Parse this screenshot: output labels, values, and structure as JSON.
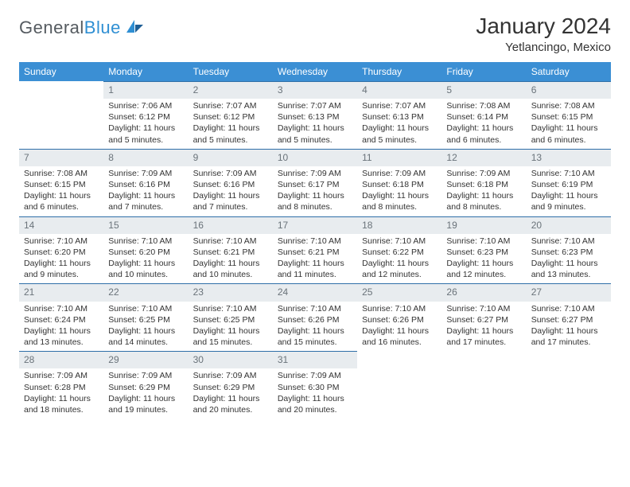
{
  "brand": {
    "part1": "General",
    "part2": "Blue"
  },
  "title": "January 2024",
  "location": "Yetlancingo, Mexico",
  "colors": {
    "header_bg": "#3b8fd4",
    "header_fg": "#ffffff",
    "daynum_bg": "#e8ecef",
    "daynum_border": "#2f6fa8",
    "daynum_fg": "#6a737a",
    "brand_gray": "#555b60",
    "brand_blue": "#2f8fd3"
  },
  "weekdays": [
    "Sunday",
    "Monday",
    "Tuesday",
    "Wednesday",
    "Thursday",
    "Friday",
    "Saturday"
  ],
  "weeks": [
    [
      {
        "n": "",
        "sr": "",
        "ss": "",
        "dl": ""
      },
      {
        "n": "1",
        "sr": "Sunrise: 7:06 AM",
        "ss": "Sunset: 6:12 PM",
        "dl": "Daylight: 11 hours and 5 minutes."
      },
      {
        "n": "2",
        "sr": "Sunrise: 7:07 AM",
        "ss": "Sunset: 6:12 PM",
        "dl": "Daylight: 11 hours and 5 minutes."
      },
      {
        "n": "3",
        "sr": "Sunrise: 7:07 AM",
        "ss": "Sunset: 6:13 PM",
        "dl": "Daylight: 11 hours and 5 minutes."
      },
      {
        "n": "4",
        "sr": "Sunrise: 7:07 AM",
        "ss": "Sunset: 6:13 PM",
        "dl": "Daylight: 11 hours and 5 minutes."
      },
      {
        "n": "5",
        "sr": "Sunrise: 7:08 AM",
        "ss": "Sunset: 6:14 PM",
        "dl": "Daylight: 11 hours and 6 minutes."
      },
      {
        "n": "6",
        "sr": "Sunrise: 7:08 AM",
        "ss": "Sunset: 6:15 PM",
        "dl": "Daylight: 11 hours and 6 minutes."
      }
    ],
    [
      {
        "n": "7",
        "sr": "Sunrise: 7:08 AM",
        "ss": "Sunset: 6:15 PM",
        "dl": "Daylight: 11 hours and 6 minutes."
      },
      {
        "n": "8",
        "sr": "Sunrise: 7:09 AM",
        "ss": "Sunset: 6:16 PM",
        "dl": "Daylight: 11 hours and 7 minutes."
      },
      {
        "n": "9",
        "sr": "Sunrise: 7:09 AM",
        "ss": "Sunset: 6:16 PM",
        "dl": "Daylight: 11 hours and 7 minutes."
      },
      {
        "n": "10",
        "sr": "Sunrise: 7:09 AM",
        "ss": "Sunset: 6:17 PM",
        "dl": "Daylight: 11 hours and 8 minutes."
      },
      {
        "n": "11",
        "sr": "Sunrise: 7:09 AM",
        "ss": "Sunset: 6:18 PM",
        "dl": "Daylight: 11 hours and 8 minutes."
      },
      {
        "n": "12",
        "sr": "Sunrise: 7:09 AM",
        "ss": "Sunset: 6:18 PM",
        "dl": "Daylight: 11 hours and 8 minutes."
      },
      {
        "n": "13",
        "sr": "Sunrise: 7:10 AM",
        "ss": "Sunset: 6:19 PM",
        "dl": "Daylight: 11 hours and 9 minutes."
      }
    ],
    [
      {
        "n": "14",
        "sr": "Sunrise: 7:10 AM",
        "ss": "Sunset: 6:20 PM",
        "dl": "Daylight: 11 hours and 9 minutes."
      },
      {
        "n": "15",
        "sr": "Sunrise: 7:10 AM",
        "ss": "Sunset: 6:20 PM",
        "dl": "Daylight: 11 hours and 10 minutes."
      },
      {
        "n": "16",
        "sr": "Sunrise: 7:10 AM",
        "ss": "Sunset: 6:21 PM",
        "dl": "Daylight: 11 hours and 10 minutes."
      },
      {
        "n": "17",
        "sr": "Sunrise: 7:10 AM",
        "ss": "Sunset: 6:21 PM",
        "dl": "Daylight: 11 hours and 11 minutes."
      },
      {
        "n": "18",
        "sr": "Sunrise: 7:10 AM",
        "ss": "Sunset: 6:22 PM",
        "dl": "Daylight: 11 hours and 12 minutes."
      },
      {
        "n": "19",
        "sr": "Sunrise: 7:10 AM",
        "ss": "Sunset: 6:23 PM",
        "dl": "Daylight: 11 hours and 12 minutes."
      },
      {
        "n": "20",
        "sr": "Sunrise: 7:10 AM",
        "ss": "Sunset: 6:23 PM",
        "dl": "Daylight: 11 hours and 13 minutes."
      }
    ],
    [
      {
        "n": "21",
        "sr": "Sunrise: 7:10 AM",
        "ss": "Sunset: 6:24 PM",
        "dl": "Daylight: 11 hours and 13 minutes."
      },
      {
        "n": "22",
        "sr": "Sunrise: 7:10 AM",
        "ss": "Sunset: 6:25 PM",
        "dl": "Daylight: 11 hours and 14 minutes."
      },
      {
        "n": "23",
        "sr": "Sunrise: 7:10 AM",
        "ss": "Sunset: 6:25 PM",
        "dl": "Daylight: 11 hours and 15 minutes."
      },
      {
        "n": "24",
        "sr": "Sunrise: 7:10 AM",
        "ss": "Sunset: 6:26 PM",
        "dl": "Daylight: 11 hours and 15 minutes."
      },
      {
        "n": "25",
        "sr": "Sunrise: 7:10 AM",
        "ss": "Sunset: 6:26 PM",
        "dl": "Daylight: 11 hours and 16 minutes."
      },
      {
        "n": "26",
        "sr": "Sunrise: 7:10 AM",
        "ss": "Sunset: 6:27 PM",
        "dl": "Daylight: 11 hours and 17 minutes."
      },
      {
        "n": "27",
        "sr": "Sunrise: 7:10 AM",
        "ss": "Sunset: 6:27 PM",
        "dl": "Daylight: 11 hours and 17 minutes."
      }
    ],
    [
      {
        "n": "28",
        "sr": "Sunrise: 7:09 AM",
        "ss": "Sunset: 6:28 PM",
        "dl": "Daylight: 11 hours and 18 minutes."
      },
      {
        "n": "29",
        "sr": "Sunrise: 7:09 AM",
        "ss": "Sunset: 6:29 PM",
        "dl": "Daylight: 11 hours and 19 minutes."
      },
      {
        "n": "30",
        "sr": "Sunrise: 7:09 AM",
        "ss": "Sunset: 6:29 PM",
        "dl": "Daylight: 11 hours and 20 minutes."
      },
      {
        "n": "31",
        "sr": "Sunrise: 7:09 AM",
        "ss": "Sunset: 6:30 PM",
        "dl": "Daylight: 11 hours and 20 minutes."
      },
      {
        "n": "",
        "sr": "",
        "ss": "",
        "dl": ""
      },
      {
        "n": "",
        "sr": "",
        "ss": "",
        "dl": ""
      },
      {
        "n": "",
        "sr": "",
        "ss": "",
        "dl": ""
      }
    ]
  ]
}
